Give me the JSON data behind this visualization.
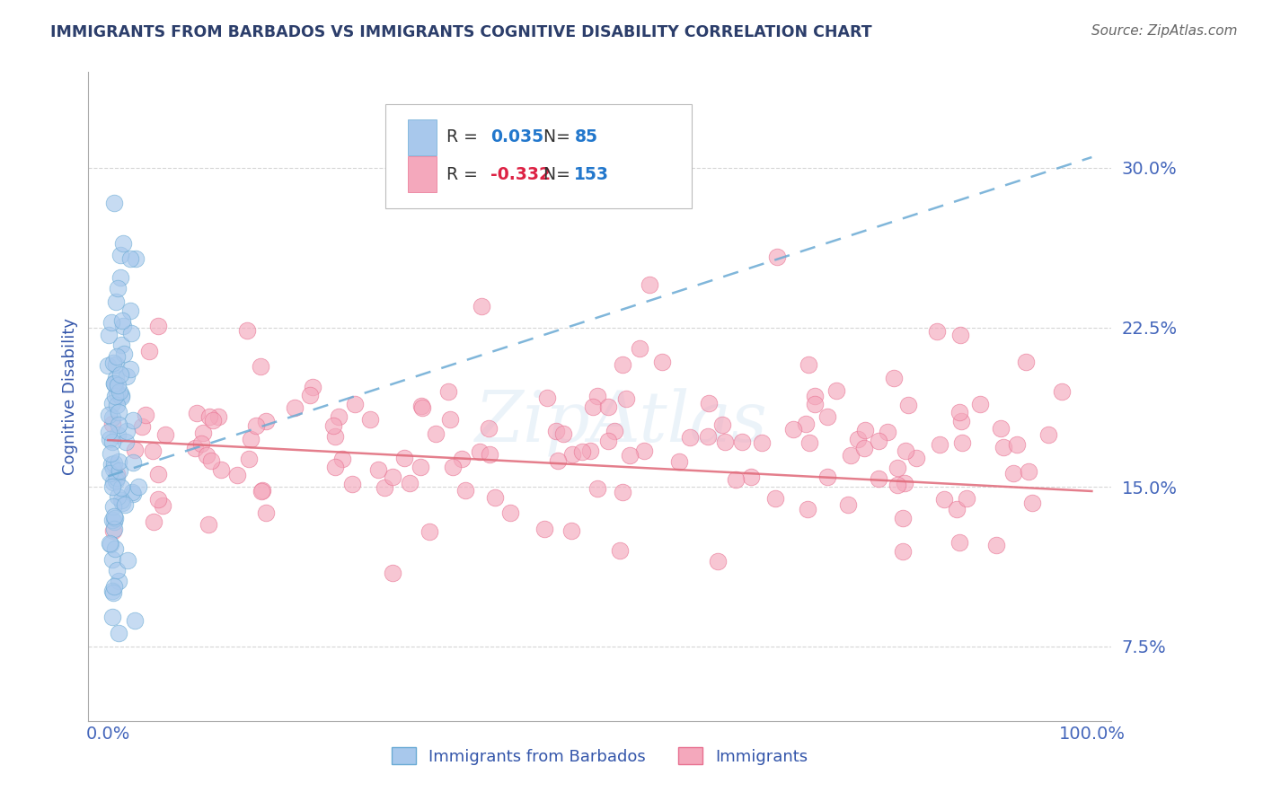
{
  "title": "IMMIGRANTS FROM BARBADOS VS IMMIGRANTS COGNITIVE DISABILITY CORRELATION CHART",
  "source": "Source: ZipAtlas.com",
  "ylabel": "Cognitive Disability",
  "xlim": [
    -0.02,
    1.02
  ],
  "ylim": [
    0.04,
    0.345
  ],
  "ytick_positions": [
    0.075,
    0.15,
    0.225,
    0.3
  ],
  "ytick_labels": [
    "7.5%",
    "15.0%",
    "22.5%",
    "30.0%"
  ],
  "xtick_positions": [
    0.0,
    1.0
  ],
  "xtick_labels": [
    "0.0%",
    "100.0%"
  ],
  "R_blue": 0.035,
  "N_blue": 85,
  "R_pink": -0.332,
  "N_pink": 153,
  "legend_label_blue": "Immigrants from Barbados",
  "legend_label_pink": "Immigrants",
  "blue_scatter_color": "#a8c8ec",
  "blue_scatter_edge": "#6aaad4",
  "pink_scatter_color": "#f4a8bc",
  "pink_scatter_edge": "#e87090",
  "trendline_blue_color": "#6aaad4",
  "trendline_pink_color": "#e06878",
  "title_color": "#2c3e6b",
  "source_color": "#666666",
  "axis_label_color": "#3355aa",
  "tick_color": "#4466bb",
  "legend_R_color_blue": "#2277cc",
  "legend_R_color_pink": "#dd2244",
  "legend_N_color": "#2277cc",
  "grid_color": "#cccccc",
  "background_color": "#ffffff",
  "blue_trendline_start_y": 0.155,
  "blue_trendline_end_y": 0.305,
  "pink_trendline_start_y": 0.172,
  "pink_trendline_end_y": 0.148
}
